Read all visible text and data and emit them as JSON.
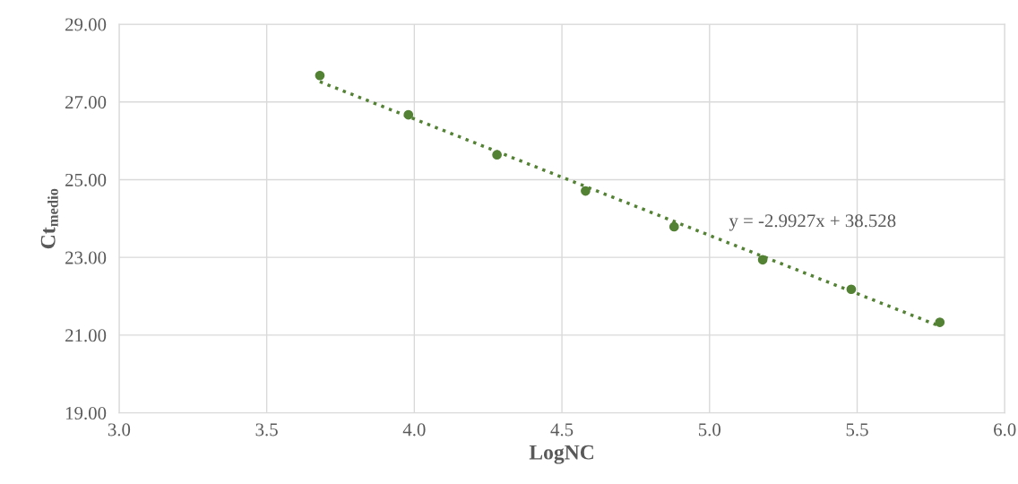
{
  "chart_data": {
    "type": "scatter",
    "xlabel": "LogNC",
    "ylabel": "Ct$_{medio}$",
    "xlim": [
      3.0,
      6.0
    ],
    "xticks": [
      {
        "value": 3.0,
        "label": "3.0"
      },
      {
        "value": 3.5,
        "label": "3.5"
      },
      {
        "value": 4.0,
        "label": "4.0"
      },
      {
        "value": 4.5,
        "label": "4.5"
      },
      {
        "value": 5.0,
        "label": "5.0"
      },
      {
        "value": 5.5,
        "label": "5.5"
      },
      {
        "value": 6.0,
        "label": "6.0"
      }
    ],
    "ylim": [
      19,
      29
    ],
    "yticks": [
      {
        "value": 19,
        "label": "19.00"
      },
      {
        "value": 21,
        "label": "21.00"
      },
      {
        "value": 23,
        "label": "23.00"
      },
      {
        "value": 25,
        "label": "25.00"
      },
      {
        "value": 27,
        "label": "27.00"
      },
      {
        "value": 29,
        "label": "29.00"
      }
    ],
    "grid": true,
    "marker": "circle",
    "series": [
      {
        "color": "#548235",
        "x": [
          3.68,
          3.98,
          4.28,
          4.58,
          4.88,
          5.18,
          5.48,
          5.78
        ],
        "values": [
          27.68,
          26.67,
          25.64,
          24.71,
          23.79,
          22.94,
          22.18,
          21.33
        ]
      },
      {
        "type": "line",
        "color": "#548235",
        "line_style": "dotted",
        "marker": "none",
        "x": [
          3.68,
          5.78
        ],
        "values": [
          27.52,
          21.23
        ]
      }
    ],
    "annotations": [
      "y = -2.9927x + 38.528"
    ]
  }
}
